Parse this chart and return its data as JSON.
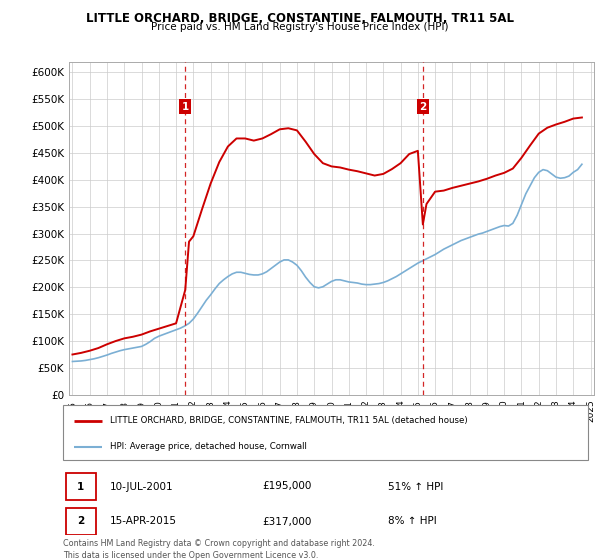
{
  "title": "LITTLE ORCHARD, BRIDGE, CONSTANTINE, FALMOUTH, TR11 5AL",
  "subtitle": "Price paid vs. HM Land Registry's House Price Index (HPI)",
  "ylim": [
    0,
    620000
  ],
  "yticks": [
    0,
    50000,
    100000,
    150000,
    200000,
    250000,
    300000,
    350000,
    400000,
    450000,
    500000,
    550000,
    600000
  ],
  "ytick_labels": [
    "£0",
    "£50K",
    "£100K",
    "£150K",
    "£200K",
    "£250K",
    "£300K",
    "£350K",
    "£400K",
    "£450K",
    "£500K",
    "£550K",
    "£600K"
  ],
  "xlim_left": 1994.8,
  "xlim_right": 2025.2,
  "sale1_year": 2001.53,
  "sale1_price": 195000,
  "sale1_date": "10-JUL-2001",
  "sale1_amount": "£195,000",
  "sale1_hpi": "51% ↑ HPI",
  "sale2_year": 2015.29,
  "sale2_price": 317000,
  "sale2_date": "15-APR-2015",
  "sale2_amount": "£317,000",
  "sale2_hpi": "8% ↑ HPI",
  "red_color": "#cc0000",
  "blue_color": "#7bafd4",
  "legend_line1": "LITTLE ORCHARD, BRIDGE, CONSTANTINE, FALMOUTH, TR11 5AL (detached house)",
  "legend_line2": "HPI: Average price, detached house, Cornwall",
  "footnote": "Contains HM Land Registry data © Crown copyright and database right 2024.\nThis data is licensed under the Open Government Licence v3.0.",
  "hpi_data_x": [
    1995.0,
    1995.25,
    1995.5,
    1995.75,
    1996.0,
    1996.25,
    1996.5,
    1996.75,
    1997.0,
    1997.25,
    1997.5,
    1997.75,
    1998.0,
    1998.25,
    1998.5,
    1998.75,
    1999.0,
    1999.25,
    1999.5,
    1999.75,
    2000.0,
    2000.25,
    2000.5,
    2000.75,
    2001.0,
    2001.25,
    2001.5,
    2001.75,
    2002.0,
    2002.25,
    2002.5,
    2002.75,
    2003.0,
    2003.25,
    2003.5,
    2003.75,
    2004.0,
    2004.25,
    2004.5,
    2004.75,
    2005.0,
    2005.25,
    2005.5,
    2005.75,
    2006.0,
    2006.25,
    2006.5,
    2006.75,
    2007.0,
    2007.25,
    2007.5,
    2007.75,
    2008.0,
    2008.25,
    2008.5,
    2008.75,
    2009.0,
    2009.25,
    2009.5,
    2009.75,
    2010.0,
    2010.25,
    2010.5,
    2010.75,
    2011.0,
    2011.25,
    2011.5,
    2011.75,
    2012.0,
    2012.25,
    2012.5,
    2012.75,
    2013.0,
    2013.25,
    2013.5,
    2013.75,
    2014.0,
    2014.25,
    2014.5,
    2014.75,
    2015.0,
    2015.25,
    2015.5,
    2015.75,
    2016.0,
    2016.25,
    2016.5,
    2016.75,
    2017.0,
    2017.25,
    2017.5,
    2017.75,
    2018.0,
    2018.25,
    2018.5,
    2018.75,
    2019.0,
    2019.25,
    2019.5,
    2019.75,
    2020.0,
    2020.25,
    2020.5,
    2020.75,
    2021.0,
    2021.25,
    2021.5,
    2021.75,
    2022.0,
    2022.25,
    2022.5,
    2022.75,
    2023.0,
    2023.25,
    2023.5,
    2023.75,
    2024.0,
    2024.25,
    2024.5
  ],
  "hpi_data_y": [
    62000,
    62500,
    63000,
    64000,
    65500,
    67000,
    69000,
    71500,
    74000,
    77000,
    79500,
    82000,
    84000,
    85500,
    87000,
    88500,
    90000,
    94000,
    99000,
    105000,
    109000,
    112000,
    115000,
    118000,
    121000,
    124000,
    128000,
    133000,
    141000,
    152000,
    164000,
    176000,
    186000,
    197000,
    207000,
    214000,
    220000,
    225000,
    228000,
    228000,
    226000,
    224000,
    223000,
    223000,
    225000,
    229000,
    235000,
    241000,
    247000,
    251000,
    251000,
    247000,
    241000,
    231000,
    219000,
    209000,
    201000,
    199000,
    201000,
    206000,
    211000,
    214000,
    214000,
    212000,
    210000,
    209000,
    208000,
    206000,
    205000,
    205000,
    206000,
    207000,
    209000,
    212000,
    216000,
    220000,
    225000,
    230000,
    235000,
    240000,
    245000,
    249000,
    253000,
    257000,
    261000,
    266000,
    271000,
    275000,
    279000,
    283000,
    287000,
    290000,
    293000,
    296000,
    299000,
    301000,
    304000,
    307000,
    310000,
    313000,
    315000,
    314000,
    319000,
    334000,
    354000,
    374000,
    389000,
    404000,
    414000,
    419000,
    417000,
    411000,
    405000,
    403000,
    404000,
    407000,
    414000,
    419000,
    429000
  ],
  "red_data_x": [
    1995.0,
    1995.5,
    1996.0,
    1996.5,
    1997.0,
    1997.5,
    1998.0,
    1998.5,
    1999.0,
    1999.5,
    2000.0,
    2000.5,
    2001.0,
    2001.53,
    2001.75,
    2002.0,
    2002.5,
    2003.0,
    2003.5,
    2004.0,
    2004.5,
    2005.0,
    2005.5,
    2006.0,
    2006.5,
    2007.0,
    2007.5,
    2008.0,
    2008.5,
    2009.0,
    2009.5,
    2010.0,
    2010.5,
    2011.0,
    2011.5,
    2012.0,
    2012.5,
    2013.0,
    2013.5,
    2014.0,
    2014.5,
    2015.0,
    2015.29,
    2015.5,
    2016.0,
    2016.5,
    2017.0,
    2017.5,
    2018.0,
    2018.5,
    2019.0,
    2019.5,
    2020.0,
    2020.5,
    2021.0,
    2021.5,
    2022.0,
    2022.5,
    2023.0,
    2023.5,
    2024.0,
    2024.5
  ],
  "red_data_y": [
    75000,
    78000,
    82000,
    87000,
    94000,
    100000,
    105000,
    108000,
    112000,
    118000,
    123000,
    128000,
    133000,
    195000,
    285000,
    295000,
    345000,
    393000,
    433000,
    462000,
    477000,
    477000,
    473000,
    477000,
    485000,
    494000,
    496000,
    492000,
    471000,
    448000,
    431000,
    425000,
    423000,
    419000,
    416000,
    412000,
    408000,
    411000,
    420000,
    431000,
    448000,
    454000,
    317000,
    355000,
    378000,
    380000,
    385000,
    389000,
    393000,
    397000,
    402000,
    408000,
    413000,
    421000,
    441000,
    464000,
    486000,
    497000,
    503000,
    508000,
    514000,
    516000
  ]
}
